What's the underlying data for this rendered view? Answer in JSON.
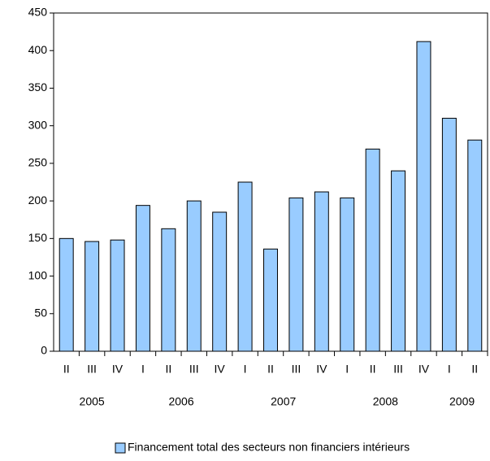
{
  "chart_data": {
    "type": "bar",
    "groups": [
      {
        "label": "2005",
        "categories": [
          "II",
          "III",
          "IV"
        ]
      },
      {
        "label": "2006",
        "categories": [
          "I",
          "II",
          "III",
          "IV"
        ]
      },
      {
        "label": "2007",
        "categories": [
          "I",
          "II",
          "III",
          "IV"
        ]
      },
      {
        "label": "2008",
        "categories": [
          "I",
          "II",
          "III",
          "IV"
        ]
      },
      {
        "label": "2009",
        "categories": [
          "I",
          "II"
        ]
      }
    ],
    "series": [
      {
        "name": "Financement total des secteurs non financiers intérieurs",
        "color": "#99ccff",
        "values": [
          150,
          146,
          148,
          194,
          163,
          200,
          185,
          225,
          136,
          204,
          212,
          204,
          269,
          240,
          412,
          310,
          281
        ]
      }
    ],
    "ylim": [
      0,
      450
    ],
    "yticks": [
      0,
      50,
      100,
      150,
      200,
      250,
      300,
      350,
      400,
      450
    ],
    "grid": false,
    "legend": "bottom"
  }
}
